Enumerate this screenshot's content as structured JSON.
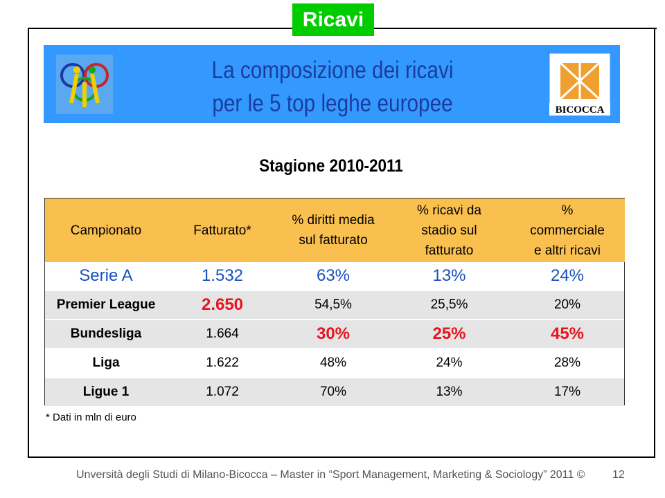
{
  "header": {
    "tag": "Ricavi",
    "title_lines": [
      "La composizione dei ricavi",
      "per le 5 top leghe europee"
    ]
  },
  "subtitle": "Stagione 2010-2011",
  "table": {
    "headers": [
      [
        "Campionato"
      ],
      [
        "Fatturato*"
      ],
      [
        "% diritti media",
        "sul fatturato"
      ],
      [
        "% ricavi da",
        "stadio sul",
        "fatturato"
      ],
      [
        "%",
        "commerciale",
        "e altri ricavi"
      ]
    ],
    "rows": [
      [
        "Serie A",
        "1.532",
        "63%",
        "13%",
        "24%"
      ],
      [
        "Premier League",
        "2.650",
        "54,5%",
        "25,5%",
        "20%"
      ],
      [
        "Bundesliga",
        "1.664",
        "30%",
        "25%",
        "45%"
      ],
      [
        "Liga",
        "1.622",
        "48%",
        "24%",
        "28%"
      ],
      [
        "Ligue 1",
        "1.072",
        "70%",
        "13%",
        "17%"
      ]
    ]
  },
  "footnote": "* Dati in mln di euro",
  "footer": {
    "text": "Unversità degli Studi di Milano-Bicocca – Master in “Sport Management, Marketing & Sociology” 2011 ©",
    "page": "12"
  }
}
